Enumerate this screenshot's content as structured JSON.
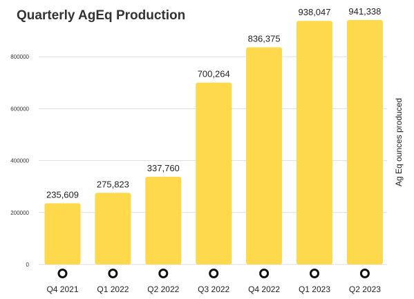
{
  "chart_data": {
    "type": "bar",
    "title": "Quarterly AgEq Production",
    "xlabel": "",
    "ylabel": "Ag Eq ounces produced",
    "ylabel_position": "right",
    "categories": [
      "Q4 2021",
      "Q1 2022",
      "Q2 2022",
      "Q3 2022",
      "Q4 2022",
      "Q1 2023",
      "Q2 2023"
    ],
    "values": [
      235609,
      275823,
      337760,
      700264,
      836375,
      938047,
      941338
    ],
    "data_labels": [
      "235,609",
      "275,823",
      "337,760",
      "700,264",
      "836,375",
      "938,047",
      "941,338"
    ],
    "ylim": [
      0,
      941338
    ],
    "yticks": [
      0,
      200000,
      400000,
      600000,
      800000
    ],
    "ytick_labels": [
      "0",
      "200000",
      "400000",
      "600000",
      "800000"
    ],
    "grid": "horizontal",
    "legend": "none",
    "bar_color": "#fdd94b",
    "grid_color": "#dddddd",
    "marker_icon": "ring-marker-icon"
  }
}
